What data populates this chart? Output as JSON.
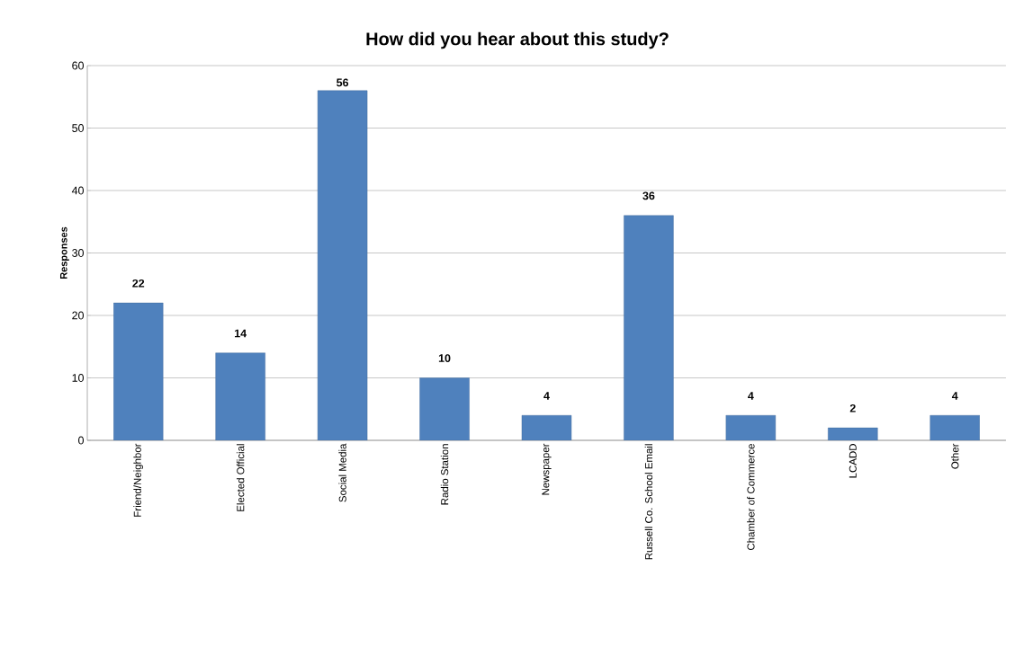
{
  "chart_data": {
    "type": "bar",
    "title": "How did you hear about this study?",
    "ylabel": "Responses",
    "categories": [
      "Friend/Neighbor",
      "Elected Official",
      "Social Media",
      "Radio Station",
      "Newspaper",
      "Russell Co. School Email",
      "Chamber of Commerce",
      "LCADD",
      "Other"
    ],
    "values": [
      22,
      14,
      56,
      10,
      4,
      36,
      4,
      2,
      4
    ],
    "color": "#4f81bd",
    "ylim": [
      0,
      60
    ],
    "yticks": [
      0,
      10,
      20,
      30,
      40,
      50,
      60
    ],
    "grid": "y",
    "data_labels": true
  }
}
